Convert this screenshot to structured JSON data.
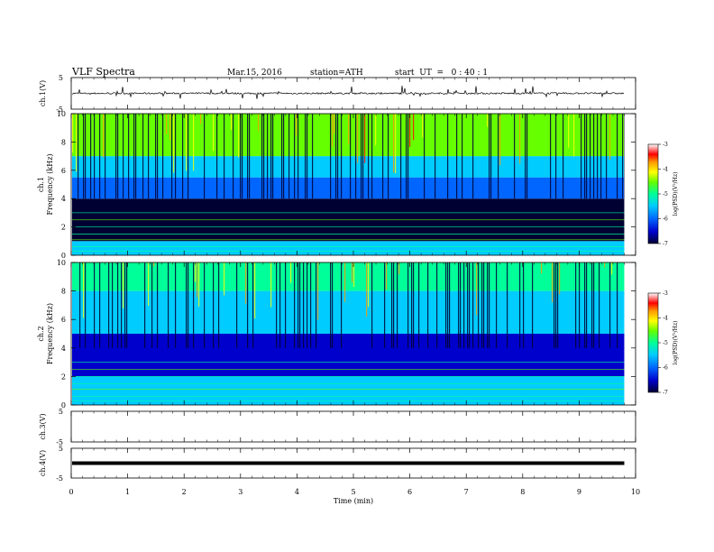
{
  "header": {
    "title": "VLF Spectra",
    "date": "Mar.15, 2016",
    "station": "station=ATH",
    "start": "start  UT  =   0 : 40 : 1"
  },
  "chart_data": [
    {
      "type": "line",
      "panel": "ch1-waveform",
      "ylabel": "ch.1(V)",
      "ylim": [
        -5,
        5
      ],
      "y_ticks": [
        "5",
        "-5"
      ],
      "series": [
        {
          "values_summary": {
            "baseline": 0.0,
            "typical_amplitude": 0.5,
            "max_spike": 2.0
          }
        }
      ]
    },
    {
      "type": "heatmap",
      "panel": "ch1-spectrogram",
      "ylabel": "Frequency (kHz)",
      "ylabel_channel": "ch.1",
      "ylim": [
        0,
        10
      ],
      "y_ticks": [
        "0",
        "2",
        "4",
        "6",
        "8",
        "10"
      ],
      "colorbar": {
        "label": "log(PSD)(V²/Hz)",
        "range": [
          -7,
          -3
        ],
        "ticks": [
          "-3",
          "-4",
          "-5",
          "-6",
          "-7"
        ]
      },
      "bands_khz": [
        {
          "from": 0,
          "to": 1,
          "level": -5.3
        },
        {
          "from": 1,
          "to": 4,
          "level": -6.6
        },
        {
          "from": 4,
          "to": 5.5,
          "level": -6.1
        },
        {
          "from": 5.5,
          "to": 7,
          "level": -5.4
        },
        {
          "from": 7,
          "to": 10,
          "level": -4.6
        }
      ]
    },
    {
      "type": "heatmap",
      "panel": "ch2-spectrogram",
      "ylabel": "Frequency (kHz)",
      "ylabel_channel": "ch.2",
      "ylim": [
        0,
        10
      ],
      "y_ticks": [
        "0",
        "2",
        "4",
        "6",
        "8",
        "10"
      ],
      "colorbar": {
        "label": "log(PSD)(V²/Hz)",
        "range": [
          -7,
          -3
        ],
        "ticks": [
          "-3",
          "-4",
          "-5",
          "-6",
          "-7"
        ]
      },
      "bands_khz": [
        {
          "from": 0,
          "to": 2,
          "level": -5.6
        },
        {
          "from": 2,
          "to": 5,
          "level": -6.4
        },
        {
          "from": 5,
          "to": 8,
          "level": -5.4
        },
        {
          "from": 8,
          "to": 10,
          "level": -5.1
        }
      ]
    },
    {
      "type": "line",
      "panel": "ch3-waveform",
      "ylabel": "ch.3(V)",
      "ylim": [
        -5,
        5
      ],
      "y_ticks": [
        "5",
        "-5"
      ],
      "series": [
        {
          "values_summary": {
            "baseline": null
          }
        }
      ]
    },
    {
      "type": "line",
      "panel": "ch4-waveform",
      "ylabel": "ch.4(V)",
      "ylim": [
        -5,
        5
      ],
      "y_ticks": [
        "5",
        "-5"
      ],
      "series": [
        {
          "values_summary": {
            "baseline": 0.0
          }
        }
      ]
    }
  ],
  "x_axis": {
    "label": "Time  (min)",
    "xlim": [
      0,
      10
    ],
    "ticks": [
      "0",
      "1",
      "2",
      "3",
      "4",
      "5",
      "6",
      "7",
      "8",
      "9",
      "10"
    ],
    "data_end": 9.8
  },
  "colors": {
    "palette": [
      "#000033",
      "#0000cc",
      "#0066ff",
      "#00ccff",
      "#00ff99",
      "#66ff00",
      "#ffff00",
      "#ff9900",
      "#ff0000",
      "#ffffff"
    ]
  }
}
